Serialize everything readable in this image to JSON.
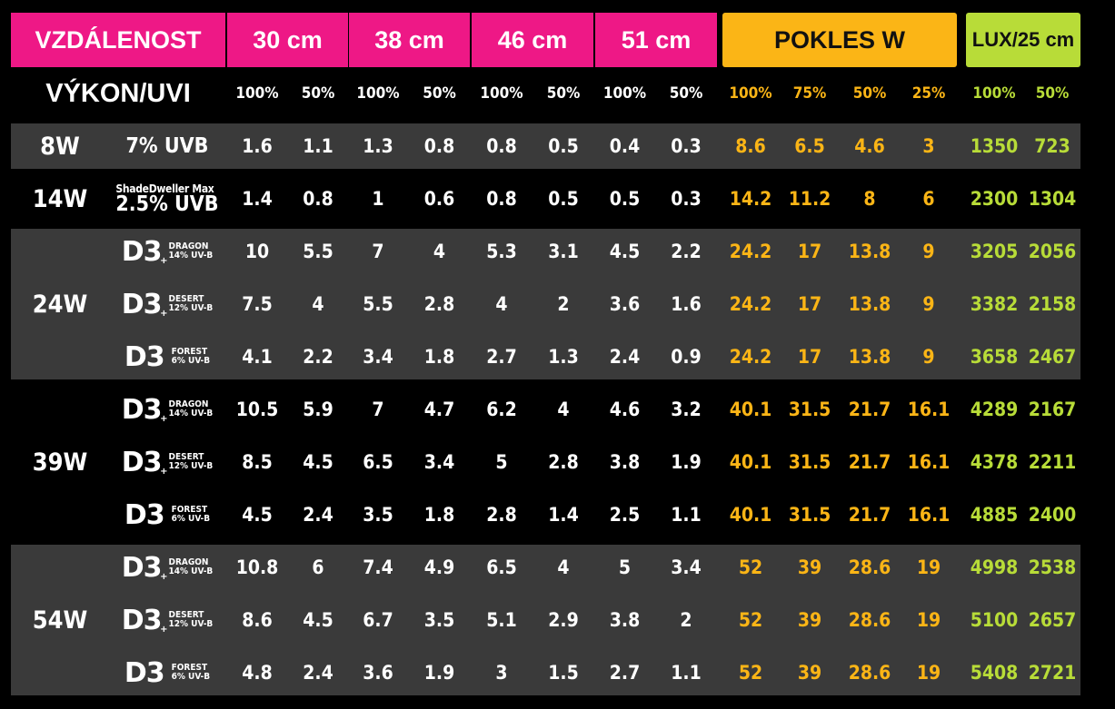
{
  "headers": {
    "distance_label": "VZDÁLENOST",
    "distances": [
      "30 cm",
      "38 cm",
      "46 cm",
      "51 cm"
    ],
    "drop_label": "POKLES W",
    "lux_label": "LUX/25 cm",
    "power_label": "VÝKON/UVI"
  },
  "subheaders": {
    "uvi": [
      "100%",
      "50%",
      "100%",
      "50%",
      "100%",
      "50%",
      "100%",
      "50%"
    ],
    "drop": [
      "100%",
      "75%",
      "50%",
      "25%"
    ],
    "lux": [
      "100%",
      "50%"
    ]
  },
  "groups": [
    {
      "watt": "8W"
    },
    {
      "watt": "14W"
    },
    {
      "watt": "24W"
    },
    {
      "watt": "39W"
    },
    {
      "watt": "54W"
    }
  ],
  "rows": [
    {
      "lamp": {
        "kind": "simple",
        "text": "7% UVB"
      },
      "uvi": [
        "1.6",
        "1.1",
        "1.3",
        "0.8",
        "0.8",
        "0.5",
        "0.4",
        "0.3"
      ],
      "drop": [
        "8.6",
        "6.5",
        "4.6",
        "3"
      ],
      "lux": [
        "1350",
        "723"
      ]
    },
    {
      "lamp": {
        "kind": "stack",
        "top": "ShadeDweller Max",
        "bottom": "2.5% UVB"
      },
      "uvi": [
        "1.4",
        "0.8",
        "1",
        "0.6",
        "0.8",
        "0.5",
        "0.5",
        "0.3"
      ],
      "drop": [
        "14.2",
        "11.2",
        "8",
        "6"
      ],
      "lux": [
        "2300",
        "1304"
      ]
    },
    {
      "lamp": {
        "kind": "d3",
        "brand": "D3",
        "plus": "+",
        "name": "DRAGON",
        "uvb": "14% UV-B"
      },
      "uvi": [
        "10",
        "5.5",
        "7",
        "4",
        "5.3",
        "3.1",
        "4.5",
        "2.2"
      ],
      "drop": [
        "24.2",
        "17",
        "13.8",
        "9"
      ],
      "lux": [
        "3205",
        "2056"
      ]
    },
    {
      "lamp": {
        "kind": "d3",
        "brand": "D3",
        "plus": "+",
        "name": "DESERT",
        "uvb": "12% UV-B"
      },
      "uvi": [
        "7.5",
        "4",
        "5.5",
        "2.8",
        "4",
        "2",
        "3.6",
        "1.6"
      ],
      "drop": [
        "24.2",
        "17",
        "13.8",
        "9"
      ],
      "lux": [
        "3382",
        "2158"
      ]
    },
    {
      "lamp": {
        "kind": "d3",
        "brand": "D3",
        "plus": "",
        "name": "FOREST",
        "uvb": "6% UV-B"
      },
      "uvi": [
        "4.1",
        "2.2",
        "3.4",
        "1.8",
        "2.7",
        "1.3",
        "2.4",
        "0.9"
      ],
      "drop": [
        "24.2",
        "17",
        "13.8",
        "9"
      ],
      "lux": [
        "3658",
        "2467"
      ]
    },
    {
      "lamp": {
        "kind": "d3",
        "brand": "D3",
        "plus": "+",
        "name": "DRAGON",
        "uvb": "14% UV-B"
      },
      "uvi": [
        "10.5",
        "5.9",
        "7",
        "4.7",
        "6.2",
        "4",
        "4.6",
        "3.2"
      ],
      "drop": [
        "40.1",
        "31.5",
        "21.7",
        "16.1"
      ],
      "lux": [
        "4289",
        "2167"
      ]
    },
    {
      "lamp": {
        "kind": "d3",
        "brand": "D3",
        "plus": "+",
        "name": "DESERT",
        "uvb": "12% UV-B"
      },
      "uvi": [
        "8.5",
        "4.5",
        "6.5",
        "3.4",
        "5",
        "2.8",
        "3.8",
        "1.9"
      ],
      "drop": [
        "40.1",
        "31.5",
        "21.7",
        "16.1"
      ],
      "lux": [
        "4378",
        "2211"
      ]
    },
    {
      "lamp": {
        "kind": "d3",
        "brand": "D3",
        "plus": "",
        "name": "FOREST",
        "uvb": "6% UV-B"
      },
      "uvi": [
        "4.5",
        "2.4",
        "3.5",
        "1.8",
        "2.8",
        "1.4",
        "2.5",
        "1.1"
      ],
      "drop": [
        "40.1",
        "31.5",
        "21.7",
        "16.1"
      ],
      "lux": [
        "4885",
        "2400"
      ]
    },
    {
      "lamp": {
        "kind": "d3",
        "brand": "D3",
        "plus": "+",
        "name": "DRAGON",
        "uvb": "14% UV-B"
      },
      "uvi": [
        "10.8",
        "6",
        "7.4",
        "4.9",
        "6.5",
        "4",
        "5",
        "3.4"
      ],
      "drop": [
        "52",
        "39",
        "28.6",
        "19"
      ],
      "lux": [
        "4998",
        "2538"
      ]
    },
    {
      "lamp": {
        "kind": "d3",
        "brand": "D3",
        "plus": "+",
        "name": "DESERT",
        "uvb": "12% UV-B"
      },
      "uvi": [
        "8.6",
        "4.5",
        "6.7",
        "3.5",
        "5.1",
        "2.9",
        "3.8",
        "2"
      ],
      "drop": [
        "52",
        "39",
        "28.6",
        "19"
      ],
      "lux": [
        "5100",
        "2657"
      ]
    },
    {
      "lamp": {
        "kind": "d3",
        "brand": "D3",
        "plus": "",
        "name": "FOREST",
        "uvb": "6% UV-B"
      },
      "uvi": [
        "4.8",
        "2.4",
        "3.6",
        "1.9",
        "3",
        "1.5",
        "2.7",
        "1.1"
      ],
      "drop": [
        "52",
        "39",
        "28.6",
        "19"
      ],
      "lux": [
        "5408",
        "2721"
      ]
    }
  ],
  "colors": {
    "pink": "#ee1886",
    "gold": "#fbb516",
    "lime": "#b8dc38",
    "band": "#3a3a3a",
    "background": "#000000"
  }
}
